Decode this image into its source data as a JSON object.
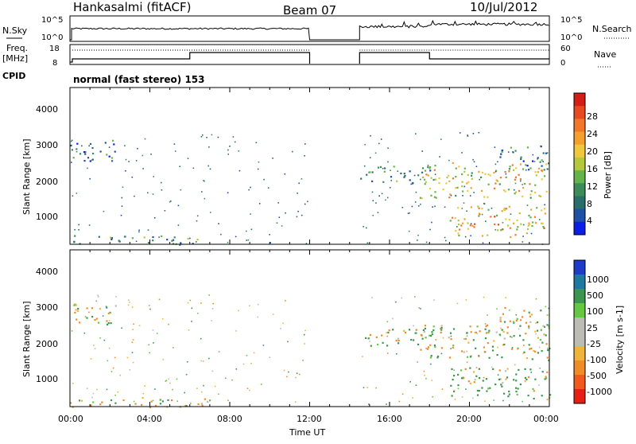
{
  "header": {
    "station": "Hankasalmi (fitACF)",
    "beam": "Beam 07",
    "date": "10/Jul/2012"
  },
  "top_panels": {
    "nsky_label": "N.Sky",
    "nsearch_label": "N.Search",
    "freq_label_1": "Freq.",
    "freq_label_2": "[MHz]",
    "nave_label": "Nave",
    "cpid_label": "CPID",
    "cpid_value": "normal (fast stereo) 153",
    "noise_left_ticks": [
      "10^5",
      "10^0"
    ],
    "noise_right_ticks": [
      "10^5",
      "10^0"
    ],
    "freq_ticks": [
      "18",
      "8"
    ],
    "nave_ticks": [
      "60",
      "0"
    ]
  },
  "x_axis": {
    "label": "Time UT",
    "ticks": [
      "00:00",
      "04:00",
      "08:00",
      "12:00",
      "16:00",
      "20:00",
      "00:00"
    ]
  },
  "power_panel": {
    "ylabel": "Slant Range [km]",
    "yticks": [
      "4000",
      "3000",
      "2000",
      "1000"
    ],
    "colorbar_label": "Power [dB]",
    "colorbar_ticks": [
      "28",
      "24",
      "20",
      "16",
      "12",
      "8",
      "4"
    ]
  },
  "velocity_panel": {
    "ylabel": "Slant Range [km]",
    "yticks": [
      "4000",
      "3000",
      "2000",
      "1000"
    ],
    "colorbar_label": "Velocity [m s-1]",
    "colorbar_ticks": [
      "1000",
      "500",
      "100",
      "25",
      "-25",
      "-100",
      "-500",
      "-1000"
    ]
  },
  "colors": {
    "power_scale": [
      "#0a1ee6",
      "#1e50a8",
      "#2a6e6a",
      "#3c8c5a",
      "#64b44b",
      "#b4c83c",
      "#f0c83c",
      "#f5a02d",
      "#f07828",
      "#e64a1e",
      "#d21e14"
    ],
    "velocity_scale": [
      "#e61e14",
      "#f05a1e",
      "#f08c28",
      "#f0b43c",
      "#bcbcb4",
      "#bcbcb4",
      "#64c840",
      "#3c9650",
      "#1e78a0",
      "#1e3cc8"
    ]
  },
  "chart_data": [
    {
      "type": "heatmap",
      "title": "Power",
      "x_range_hours": [
        0,
        24
      ],
      "ylim": [
        180,
        4600
      ],
      "x_ticks": [
        "00:00",
        "04:00",
        "08:00",
        "12:00",
        "16:00",
        "20:00",
        "00:00"
      ],
      "y_ticks": [
        1000,
        2000,
        3000,
        4000
      ],
      "colorbar": {
        "label": "Power [dB]",
        "min": 0,
        "max": 32,
        "ticks": [
          4,
          8,
          12,
          16,
          20,
          24,
          28
        ]
      },
      "data_gap_hours": [
        12.0,
        14.5
      ],
      "echo_regions": [
        {
          "t0": 0.0,
          "t1": 2.3,
          "r0": 2500,
          "r1": 3150,
          "power": 6
        },
        {
          "t0": 0.0,
          "t1": 6.5,
          "r0": 180,
          "r1": 450,
          "power": 10
        },
        {
          "t0": 14.5,
          "t1": 18.0,
          "r0": 1900,
          "r1": 2400,
          "power": 8
        },
        {
          "t0": 17.5,
          "t1": 24.0,
          "r0": 1500,
          "r1": 2500,
          "power": 18
        },
        {
          "t0": 19.0,
          "t1": 24.0,
          "r0": 400,
          "r1": 1300,
          "power": 20
        },
        {
          "t0": 21.5,
          "t1": 24.0,
          "r0": 2300,
          "r1": 3000,
          "power": 8
        }
      ]
    },
    {
      "type": "heatmap",
      "title": "Velocity",
      "x_range_hours": [
        0,
        24
      ],
      "ylim": [
        180,
        4600
      ],
      "x_ticks": [
        "00:00",
        "04:00",
        "08:00",
        "12:00",
        "16:00",
        "20:00",
        "00:00"
      ],
      "y_ticks": [
        1000,
        2000,
        3000,
        4000
      ],
      "colorbar": {
        "label": "Velocity [m s-1]",
        "min": -1000,
        "max": 1000,
        "ticks": [
          1000,
          500,
          100,
          25,
          -25,
          -100,
          -500,
          -1000
        ]
      },
      "data_gap_hours": [
        12.0,
        14.5
      ],
      "echo_regions": [
        {
          "t0": 0.0,
          "t1": 2.3,
          "r0": 2500,
          "r1": 3150,
          "velocity": 0
        },
        {
          "t0": 0.0,
          "t1": 7.0,
          "r0": 180,
          "r1": 450,
          "velocity": -120
        },
        {
          "t0": 14.5,
          "t1": 18.0,
          "r0": 1900,
          "r1": 2400,
          "velocity": 0
        },
        {
          "t0": 17.5,
          "t1": 24.0,
          "r0": 1500,
          "r1": 2500,
          "velocity": 0
        },
        {
          "t0": 19.0,
          "t1": 24.0,
          "r0": 400,
          "r1": 1300,
          "velocity": 150
        },
        {
          "t0": 21.5,
          "t1": 24.0,
          "r0": 2300,
          "r1": 3000,
          "velocity": 0
        }
      ]
    }
  ]
}
